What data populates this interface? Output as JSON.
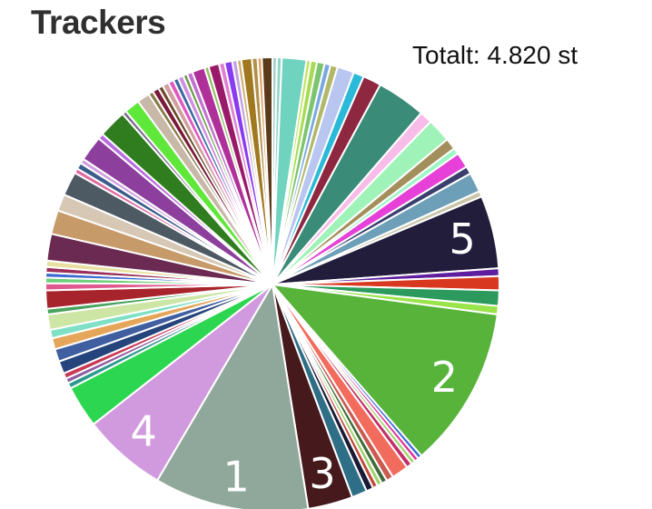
{
  "title": "Trackers",
  "total_label": "Totalt: 4.820 st",
  "chart_data": {
    "type": "pie",
    "title": "Trackers",
    "total_text": "Totalt: 4.820 st",
    "note": "Approximate slice shares in percent, clockwise from 12 o'clock; large slices labelled with rank numbers.",
    "slices": [
      {
        "label": "",
        "value": 0.32,
        "color": "#a9d1cd"
      },
      {
        "label": "",
        "value": 0.34,
        "color": "#8fd4c4"
      },
      {
        "label": "",
        "value": 1.75,
        "color": "#6fd3bf"
      },
      {
        "label": "",
        "value": 0.3,
        "color": "#c2e35f"
      },
      {
        "label": "",
        "value": 0.45,
        "color": "#a7db55"
      },
      {
        "label": "",
        "value": 0.55,
        "color": "#7cc46f"
      },
      {
        "label": "",
        "value": 0.42,
        "color": "#7aa8e2"
      },
      {
        "label": "",
        "value": 0.52,
        "color": "#b2b86a"
      },
      {
        "label": "",
        "value": 1.2,
        "color": "#b8c6f0"
      },
      {
        "label": "",
        "value": 0.75,
        "color": "#2ab9d9"
      },
      {
        "label": "",
        "value": 1.3,
        "color": "#8e2840"
      },
      {
        "label": "",
        "value": 3.5,
        "color": "#3a8b78"
      },
      {
        "label": "",
        "value": 0.9,
        "color": "#f7bde8"
      },
      {
        "label": "",
        "value": 1.7,
        "color": "#a0f3b8"
      },
      {
        "label": "",
        "value": 0.8,
        "color": "#a38f5c"
      },
      {
        "label": "",
        "value": 0.45,
        "color": "#9ef5c4"
      },
      {
        "label": "",
        "value": 1.1,
        "color": "#e640d8"
      },
      {
        "label": "",
        "value": 0.55,
        "color": "#3b3f6e"
      },
      {
        "label": "",
        "value": 1.4,
        "color": "#6e9fb8"
      },
      {
        "label": "",
        "value": 0.4,
        "color": "#c9c5a9"
      },
      {
        "label": "5",
        "value": 5.2,
        "color": "#231d3c"
      },
      {
        "label": "",
        "value": 0.55,
        "color": "#5e1e9e"
      },
      {
        "label": "",
        "value": 1.0,
        "color": "#d8381f"
      },
      {
        "label": "",
        "value": 1.1,
        "color": "#2c9a5c"
      },
      {
        "label": "",
        "value": 0.6,
        "color": "#9be34a"
      },
      {
        "label": "2",
        "value": 11.5,
        "color": "#58b33b"
      },
      {
        "label": "",
        "value": 0.3,
        "color": "#3f6ed6"
      },
      {
        "label": "",
        "value": 0.3,
        "color": "#e0339a"
      },
      {
        "label": "",
        "value": 0.3,
        "color": "#a0d26c"
      },
      {
        "label": "",
        "value": 0.4,
        "color": "#c2306a"
      },
      {
        "label": "",
        "value": 1.2,
        "color": "#f26c5e"
      },
      {
        "label": "",
        "value": 0.5,
        "color": "#cc5a50"
      },
      {
        "label": "",
        "value": 0.4,
        "color": "#3f6b3a"
      },
      {
        "label": "",
        "value": 0.35,
        "color": "#9fd36f"
      },
      {
        "label": "",
        "value": 0.35,
        "color": "#bf4a3a"
      },
      {
        "label": "",
        "value": 0.5,
        "color": "#1a1a35"
      },
      {
        "label": "",
        "value": 1.1,
        "color": "#2e6e86"
      },
      {
        "label": "3",
        "value": 3.2,
        "color": "#46191c"
      },
      {
        "label": "1",
        "value": 11.0,
        "color": "#90a89c"
      },
      {
        "label": "4",
        "value": 6.0,
        "color": "#d29ade"
      },
      {
        "label": "",
        "value": 3.0,
        "color": "#2dd650"
      },
      {
        "label": "",
        "value": 0.4,
        "color": "#2b9a8f"
      },
      {
        "label": "",
        "value": 0.35,
        "color": "#8d5ea0"
      },
      {
        "label": "",
        "value": 0.4,
        "color": "#c83a56"
      },
      {
        "label": "",
        "value": 0.9,
        "color": "#26447c"
      },
      {
        "label": "",
        "value": 0.9,
        "color": "#3f5fa0"
      },
      {
        "label": "",
        "value": 0.8,
        "color": "#e6a65a"
      },
      {
        "label": "",
        "value": 0.6,
        "color": "#7fe0c6"
      },
      {
        "label": "",
        "value": 1.1,
        "color": "#cde6a6"
      },
      {
        "label": "",
        "value": 0.4,
        "color": "#49a35e"
      },
      {
        "label": "",
        "value": 1.3,
        "color": "#a8242c"
      },
      {
        "label": "",
        "value": 0.5,
        "color": "#e05a90"
      },
      {
        "label": "",
        "value": 0.4,
        "color": "#6fcf7a"
      },
      {
        "label": "",
        "value": 0.35,
        "color": "#3b6bd0"
      },
      {
        "label": "",
        "value": 0.4,
        "color": "#9c2f5a"
      },
      {
        "label": "",
        "value": 0.45,
        "color": "#e8e0a0"
      },
      {
        "label": "",
        "value": 1.9,
        "color": "#6a2a52"
      },
      {
        "label": "",
        "value": 1.7,
        "color": "#c79a6a"
      },
      {
        "label": "",
        "value": 1.2,
        "color": "#d6c8b4"
      },
      {
        "label": "",
        "value": 1.7,
        "color": "#4d5a64"
      },
      {
        "label": "",
        "value": 0.35,
        "color": "#e06aa0"
      },
      {
        "label": "",
        "value": 0.45,
        "color": "#3b5c8a"
      },
      {
        "label": "",
        "value": 0.35,
        "color": "#d0a0e0"
      },
      {
        "label": "",
        "value": 1.8,
        "color": "#8d3f9e"
      },
      {
        "label": "",
        "value": 0.4,
        "color": "#b86de0"
      },
      {
        "label": "",
        "value": 2.0,
        "color": "#2f7d1e"
      },
      {
        "label": "",
        "value": 0.3,
        "color": "#7a6b8a"
      },
      {
        "label": "",
        "value": 1.1,
        "color": "#5fe83a"
      },
      {
        "label": "",
        "value": 0.9,
        "color": "#c8b8a8"
      },
      {
        "label": "",
        "value": 0.35,
        "color": "#8a7c4a"
      },
      {
        "label": "",
        "value": 0.45,
        "color": "#7a1a3a"
      },
      {
        "label": "",
        "value": 0.35,
        "color": "#6b4a2a"
      },
      {
        "label": "",
        "value": 0.45,
        "color": "#d0a0a0"
      },
      {
        "label": "",
        "value": 0.4,
        "color": "#e05ac0"
      },
      {
        "label": "",
        "value": 0.35,
        "color": "#3a6aa0"
      },
      {
        "label": "",
        "value": 0.4,
        "color": "#d090e0"
      },
      {
        "label": "",
        "value": 0.3,
        "color": "#6a9a4a"
      },
      {
        "label": "",
        "value": 0.4,
        "color": "#c070d0"
      },
      {
        "label": "",
        "value": 0.9,
        "color": "#b0309a"
      },
      {
        "label": "",
        "value": 0.3,
        "color": "#90c060"
      },
      {
        "label": "",
        "value": 0.75,
        "color": "#9a1a6a"
      },
      {
        "label": "",
        "value": 0.4,
        "color": "#e080d0"
      },
      {
        "label": "",
        "value": 0.55,
        "color": "#8a3af0"
      },
      {
        "label": "",
        "value": 0.35,
        "color": "#c0a0e0"
      },
      {
        "label": "",
        "value": 0.3,
        "color": "#d0b070"
      },
      {
        "label": "",
        "value": 0.75,
        "color": "#a07820"
      },
      {
        "label": "",
        "value": 0.4,
        "color": "#b0904a"
      },
      {
        "label": "",
        "value": 0.3,
        "color": "#e0a060"
      },
      {
        "label": "",
        "value": 0.75,
        "color": "#5a3a1a"
      }
    ]
  }
}
